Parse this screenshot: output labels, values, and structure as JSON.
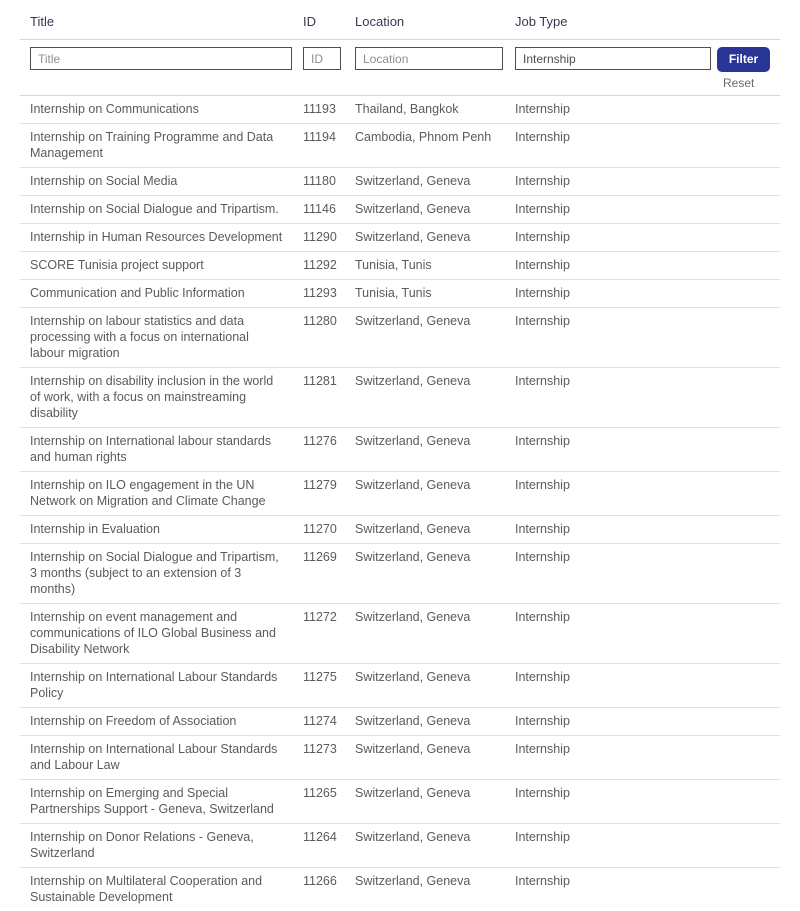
{
  "filters": {
    "title_placeholder": "Title",
    "id_placeholder": "ID",
    "location_placeholder": "Location",
    "job_type_value": "Internship",
    "filter_button": "Filter",
    "reset_link": "Reset"
  },
  "colors": {
    "filter_button_bg": "#293695",
    "filter_button_text": "#ffffff",
    "header_text": "#343a52",
    "row_text": "#595b61",
    "row_divider": "#e1e1e1",
    "input_border": "#4f4f4f"
  },
  "table": {
    "columns": [
      {
        "key": "title",
        "label": "Title"
      },
      {
        "key": "id",
        "label": "ID"
      },
      {
        "key": "location",
        "label": "Location"
      },
      {
        "key": "job_type",
        "label": "Job Type"
      }
    ],
    "rows": [
      {
        "title": "Internship on Communications",
        "id": "11193",
        "location": "Thailand, Bangkok",
        "job_type": "Internship"
      },
      {
        "title": "Internship on Training Programme and Data Management",
        "id": "11194",
        "location": "Cambodia, Phnom Penh",
        "job_type": "Internship"
      },
      {
        "title": "Internship on Social Media",
        "id": "11180",
        "location": "Switzerland, Geneva",
        "job_type": "Internship"
      },
      {
        "title": "Internship on Social Dialogue and Tripartism.",
        "id": "11146",
        "location": "Switzerland, Geneva",
        "job_type": "Internship"
      },
      {
        "title": "Internship in Human Resources Development",
        "id": "11290",
        "location": "Switzerland, Geneva",
        "job_type": "Internship"
      },
      {
        "title": "SCORE Tunisia project support",
        "id": "11292",
        "location": "Tunisia, Tunis",
        "job_type": "Internship"
      },
      {
        "title": "Communication and Public Information",
        "id": "11293",
        "location": "Tunisia, Tunis",
        "job_type": "Internship"
      },
      {
        "title": "Internship on labour statistics and data processing with a focus on international labour migration",
        "id": "11280",
        "location": "Switzerland, Geneva",
        "job_type": "Internship"
      },
      {
        "title": "Internship on disability inclusion in the world of work, with a focus on mainstreaming disability",
        "id": "11281",
        "location": "Switzerland, Geneva",
        "job_type": "Internship"
      },
      {
        "title": "Internship on International labour standards and human rights",
        "id": "11276",
        "location": "Switzerland, Geneva",
        "job_type": "Internship"
      },
      {
        "title": "Internship on ILO engagement in the UN Network on Migration and Climate Change",
        "id": "11279",
        "location": "Switzerland, Geneva",
        "job_type": "Internship"
      },
      {
        "title": "Internship in Evaluation",
        "id": "11270",
        "location": "Switzerland, Geneva",
        "job_type": "Internship"
      },
      {
        "title": "Internship on Social Dialogue and Tripartism, 3 months (subject to an extension of 3 months)",
        "id": "11269",
        "location": "Switzerland, Geneva",
        "job_type": "Internship"
      },
      {
        "title": "Internship on event management and communications of ILO Global Business and Disability Network",
        "id": "11272",
        "location": "Switzerland, Geneva",
        "job_type": "Internship"
      },
      {
        "title": "Internship on International Labour Standards Policy",
        "id": "11275",
        "location": "Switzerland, Geneva",
        "job_type": "Internship"
      },
      {
        "title": "Internship on Freedom of Association",
        "id": "11274",
        "location": "Switzerland, Geneva",
        "job_type": "Internship"
      },
      {
        "title": "Internship on International Labour Standards and Labour Law",
        "id": "11273",
        "location": "Switzerland, Geneva",
        "job_type": "Internship"
      },
      {
        "title": "Internship on Emerging and Special Partnerships Support - Geneva, Switzerland",
        "id": "11265",
        "location": "Switzerland, Geneva",
        "job_type": "Internship"
      },
      {
        "title": "Internship on Donor Relations - Geneva, Switzerland",
        "id": "11264",
        "location": "Switzerland, Geneva",
        "job_type": "Internship"
      },
      {
        "title": "Internship on Multilateral Cooperation and Sustainable Development",
        "id": "11266",
        "location": "Switzerland, Geneva",
        "job_type": "Internship"
      }
    ]
  }
}
